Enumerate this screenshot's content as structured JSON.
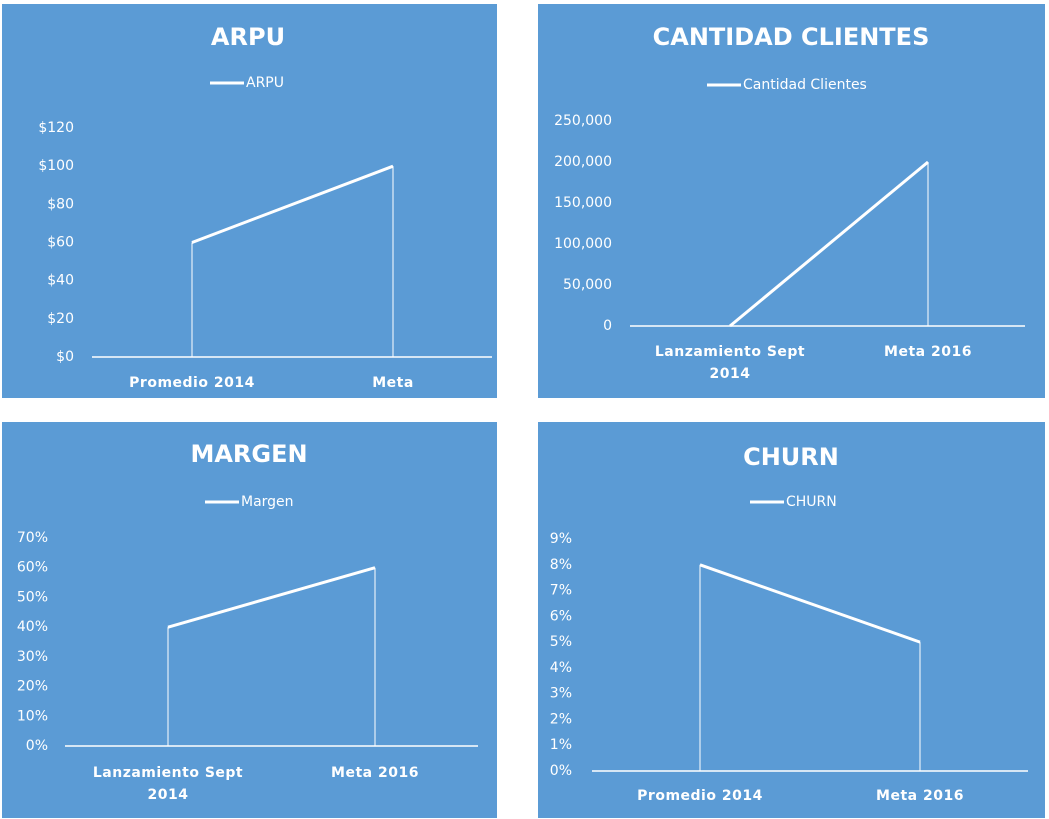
{
  "chart_data": [
    {
      "type": "line",
      "title": "ARPU",
      "categories": [
        "Promedio 2014",
        "Meta"
      ],
      "series": [
        {
          "name": "ARPU",
          "color": "#ffffff",
          "values": [
            60,
            100
          ]
        }
      ],
      "ylim": [
        0,
        120
      ],
      "yticks": [
        {
          "value": 0,
          "label": "$0"
        },
        {
          "value": 20,
          "label": "$20"
        },
        {
          "value": 40,
          "label": "$40"
        },
        {
          "value": 60,
          "label": "$60"
        },
        {
          "value": 80,
          "label": "$80"
        },
        {
          "value": 100,
          "label": "$100"
        },
        {
          "value": 120,
          "label": "$120"
        }
      ],
      "legend": "top"
    },
    {
      "type": "line",
      "title": "CANTIDAD CLIENTES",
      "categories": [
        "Lanzamiento Sept 2014",
        "Meta 2016"
      ],
      "series": [
        {
          "name": "Cantidad Clientes",
          "color": "#ffffff",
          "values": [
            0,
            200000
          ]
        }
      ],
      "ylim": [
        0,
        250000
      ],
      "yticks": [
        0,
        {
          "value": 50000,
          "label": "50,000"
        },
        {
          "value": 100000,
          "label": "100,000"
        },
        {
          "value": 150000,
          "label": "150,000"
        },
        {
          "value": 200000,
          "label": "200,000"
        },
        {
          "value": 250000,
          "label": "250,000"
        }
      ],
      "legend": "top"
    },
    {
      "type": "line",
      "title": "MARGEN",
      "categories": [
        "Lanzamiento Sept 2014",
        "Meta 2016"
      ],
      "series": [
        {
          "name": "Margen",
          "color": "#ffffff",
          "values": [
            40,
            60
          ]
        }
      ],
      "ylim": [
        0,
        70
      ],
      "yticks": [
        {
          "value": 0,
          "label": "0%"
        },
        {
          "value": 10,
          "label": "10%"
        },
        {
          "value": 20,
          "label": "20%"
        },
        {
          "value": 30,
          "label": "30%"
        },
        {
          "value": 40,
          "label": "40%"
        },
        {
          "value": 50,
          "label": "50%"
        },
        {
          "value": 60,
          "label": "60%"
        },
        {
          "value": 70,
          "label": "70%"
        }
      ],
      "legend": "top"
    },
    {
      "type": "line",
      "title": "CHURN",
      "categories": [
        "Promedio 2014",
        "Meta 2016"
      ],
      "series": [
        {
          "name": "CHURN",
          "color": "#ffffff",
          "values": [
            8,
            5
          ]
        }
      ],
      "ylim": [
        0,
        9
      ],
      "yticks": [
        {
          "value": 0,
          "label": "0%"
        },
        {
          "value": 1,
          "label": "1%"
        },
        {
          "value": 2,
          "label": "2%"
        },
        {
          "value": 3,
          "label": "3%"
        },
        {
          "value": 4,
          "label": "4%"
        },
        {
          "value": 5,
          "label": "5%"
        },
        {
          "value": 6,
          "label": "6%"
        },
        {
          "value": 7,
          "label": "7%"
        },
        {
          "value": 8,
          "label": "8%"
        },
        {
          "value": 9,
          "label": "9%"
        }
      ],
      "legend": "top"
    }
  ]
}
